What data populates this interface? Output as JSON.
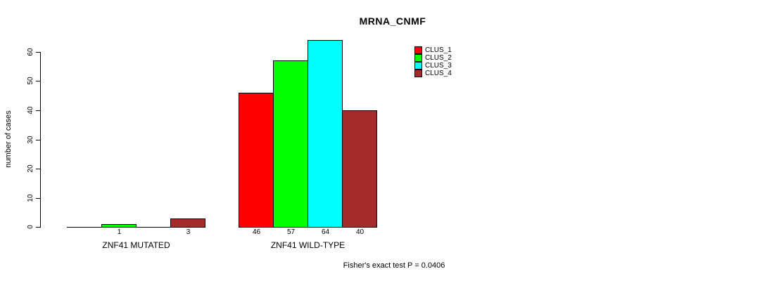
{
  "chart_data": {
    "type": "bar",
    "title": "MRNA_CNMF",
    "xlabel": "",
    "ylabel": "number of cases",
    "ylim": [
      0,
      60
    ],
    "yticks": [
      0,
      10,
      20,
      30,
      40,
      50,
      60
    ],
    "grid": false,
    "legend_position": "top-right",
    "categories": [
      "ZNF41 MUTATED",
      "ZNF41 WILD-TYPE"
    ],
    "series": [
      {
        "name": "CLUS_1",
        "color": "#FF0000",
        "values": [
          0,
          46
        ]
      },
      {
        "name": "CLUS_2",
        "color": "#00FF00",
        "values": [
          1,
          57
        ]
      },
      {
        "name": "CLUS_3",
        "color": "#00FFFF",
        "values": [
          0,
          64
        ]
      },
      {
        "name": "CLUS_4",
        "color": "#A52A2A",
        "values": [
          3,
          40
        ]
      }
    ],
    "value_labels": {
      "show": true,
      "hide_zero": true
    },
    "annotation": "Fisher's exact test P = 0.0406"
  },
  "colors": {
    "axis": "#000000",
    "text": "#000000",
    "background": "#FFFFFF"
  }
}
